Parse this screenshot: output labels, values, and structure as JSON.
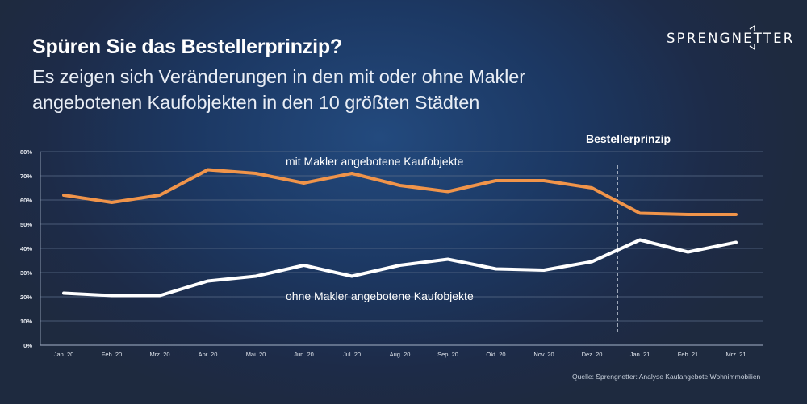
{
  "header": {
    "title": "Spüren Sie das Bestellerprinzip?",
    "subtitle_line1": "Es zeigen sich Veränderungen in den mit oder ohne Makler",
    "subtitle_line2": "angebotenen Kaufobjekten in den 10 größten Städten"
  },
  "logo": {
    "text": "SPRENGNETTER"
  },
  "footer": {
    "source": "Quelle: Sprengnetter: Analyse Kaufangebote Wohnimmobilien"
  },
  "colors": {
    "mit_makler": "#f0944a",
    "ohne_makler": "#ffffff",
    "grid": "#5a6c88",
    "background": "#1f2a40"
  },
  "chart_data": {
    "type": "line",
    "title": "",
    "xlabel": "",
    "ylabel": "",
    "categories": [
      "Jan. 20",
      "Feb. 20",
      "Mrz. 20",
      "Apr. 20",
      "Mai. 20",
      "Jun. 20",
      "Jul. 20",
      "Aug. 20",
      "Sep. 20",
      "Okt. 20",
      "Nov. 20",
      "Dez. 20",
      "Jan. 21",
      "Feb. 21",
      "Mrz. 21"
    ],
    "yticks": [
      "0%",
      "10%",
      "20%",
      "30%",
      "40%",
      "50%",
      "60%",
      "70%",
      "80%"
    ],
    "ylim": [
      0,
      80
    ],
    "grid": true,
    "legend": "none",
    "series": [
      {
        "name": "mit Makler angebotene Kaufobjekte",
        "color": "#f0944a",
        "values": [
          62,
          59,
          62,
          72.5,
          71,
          67,
          71,
          66,
          63.5,
          68,
          68,
          65,
          54.5,
          54,
          54
        ]
      },
      {
        "name": "ohne Makler angebotene Kaufobjekte",
        "color": "#ffffff",
        "values": [
          21.5,
          20.5,
          20.5,
          26.5,
          28.5,
          33,
          28.5,
          33,
          35.5,
          31.5,
          31,
          34.5,
          43.5,
          38.5,
          42.5
        ]
      }
    ],
    "annotations": [
      {
        "text": "mit Makler angebotene Kaufobjekte",
        "series": 0
      },
      {
        "text": "ohne Makler angebotene Kaufobjekte",
        "series": 1
      },
      {
        "text": "Bestellerprinzip",
        "type": "vertical-dashed-line",
        "between": [
          "Dez. 20",
          "Jan. 21"
        ]
      }
    ]
  }
}
